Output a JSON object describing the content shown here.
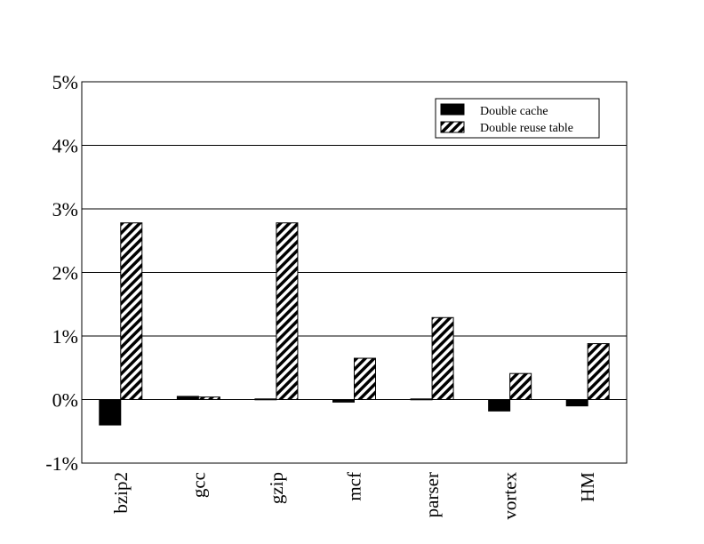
{
  "chart_data": {
    "type": "bar",
    "categories": [
      "bzip2",
      "gcc",
      "gzip",
      "mcf",
      "parser",
      "vortex",
      "HM"
    ],
    "series": [
      {
        "name": "Double cache",
        "values": [
          -0.4,
          0.05,
          0.01,
          -0.04,
          0.01,
          -0.18,
          -0.1
        ],
        "fill": "solid-black"
      },
      {
        "name": "Double reuse table",
        "values": [
          2.78,
          0.04,
          2.78,
          0.65,
          1.29,
          0.41,
          0.88
        ],
        "fill": "diagonal-hatch"
      }
    ],
    "yticks": [
      "-1%",
      "0%",
      "1%",
      "2%",
      "3%",
      "4%",
      "5%"
    ],
    "ylim": [
      -1,
      5
    ],
    "ylabel": "",
    "xlabel": "",
    "title": "",
    "grid": "horizontal",
    "legend_position": "top-right",
    "x_tick_rotation": "vertical",
    "colors": {
      "bar_solid": "#000000",
      "hatch": "#000000",
      "background": "#ffffff"
    }
  }
}
